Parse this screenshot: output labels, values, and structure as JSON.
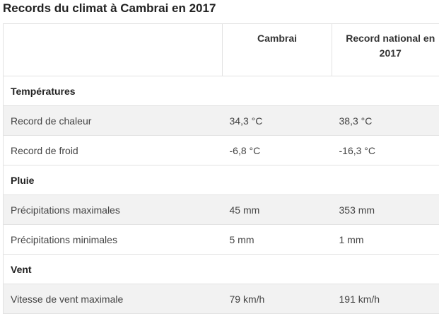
{
  "title": "Records du climat à Cambrai en 2017",
  "table": {
    "headers": [
      "Cambrai",
      "Record national en 2017"
    ],
    "sections": [
      {
        "label": "Températures",
        "rows": [
          [
            "Record de chaleur",
            "34,3 °C",
            "38,3 °C"
          ],
          [
            "Record de froid",
            "-6,8 °C",
            "-16,3 °C"
          ]
        ]
      },
      {
        "label": "Pluie",
        "rows": [
          [
            "Précipitations maximales",
            "45 mm",
            "353 mm"
          ],
          [
            "Précipitations minimales",
            "5 mm",
            "1 mm"
          ]
        ]
      },
      {
        "label": "Vent",
        "rows": [
          [
            "Vitesse de vent maximale",
            "79 km/h",
            "191 km/h"
          ]
        ]
      }
    ]
  }
}
